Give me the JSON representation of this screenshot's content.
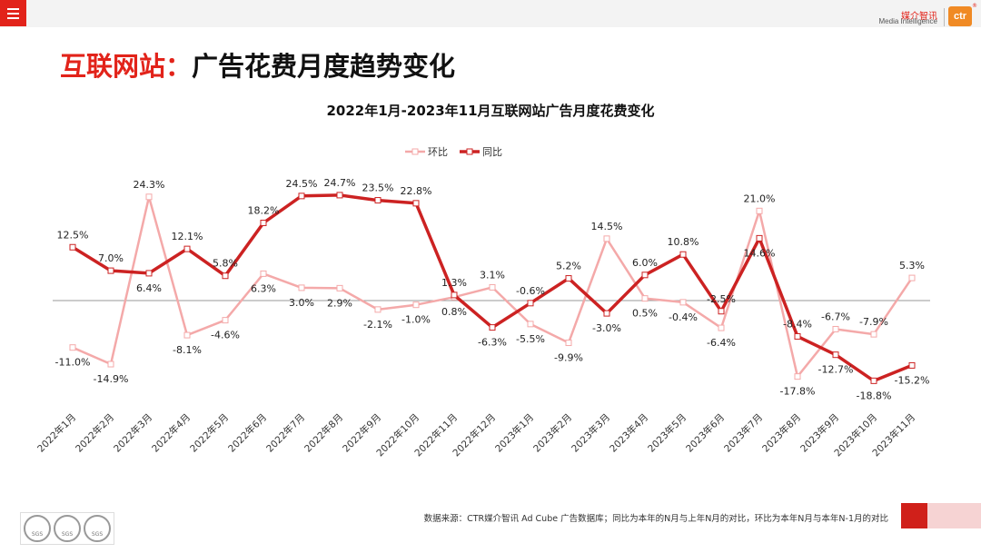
{
  "header": {
    "menu_icon": "hamburger-menu-icon",
    "logo_cn": "媒介智讯",
    "logo_en": "Media Intelligence",
    "logo_mark": "ctr",
    "logo_registered": "®"
  },
  "page_title": {
    "part1": "互联网站：",
    "part2": "广告花费月度趋势变化"
  },
  "footer": {
    "note": "数据来源：CTR媒介智讯 Ad Cube 广告数据库；同比为本年的N月与上年N月的对比，环比为本年N月与本年N-1月的对比",
    "badge_text": "SGS"
  },
  "colors": {
    "accent": "#e2231a",
    "mom_line": "#f4a9a9",
    "yoy_line": "#cc2222",
    "zero_line": "#999999"
  },
  "chart_data": {
    "type": "line",
    "title": "2022年1月-2023年11月互联网站广告月度花费变化",
    "legend_position": "top-center",
    "categories": [
      "2022年1月",
      "2022年2月",
      "2022年3月",
      "2022年4月",
      "2022年5月",
      "2022年6月",
      "2022年7月",
      "2022年8月",
      "2022年9月",
      "2022年10月",
      "2022年11月",
      "2022年12月",
      "2023年1月",
      "2023年2月",
      "2023年3月",
      "2023年4月",
      "2023年5月",
      "2023年6月",
      "2023年7月",
      "2023年8月",
      "2023年9月",
      "2023年10月",
      "2023年11月"
    ],
    "series": [
      {
        "name": "环比",
        "values": [
          -11.0,
          -14.9,
          24.3,
          -8.1,
          -4.6,
          6.3,
          3.0,
          2.9,
          -2.1,
          -1.0,
          0.8,
          3.1,
          -5.5,
          -9.9,
          14.5,
          0.5,
          -0.4,
          -6.4,
          21.0,
          -17.8,
          -6.7,
          -7.9,
          5.3
        ],
        "labels": [
          "-11.0%",
          "-14.9%",
          "24.3%",
          "-8.1%",
          "-4.6%",
          "6.3%",
          "3.0%",
          "2.9%",
          "-2.1%",
          "-1.0%",
          "0.8%",
          "3.1%",
          "-5.5%",
          "-9.9%",
          "14.5%",
          "0.5%",
          "-0.4%",
          "-6.4%",
          "21.0%",
          "-17.8%",
          "-6.7%",
          "-7.9%",
          "5.3%"
        ]
      },
      {
        "name": "同比",
        "values": [
          12.5,
          7.0,
          6.4,
          12.1,
          5.8,
          18.2,
          24.5,
          24.7,
          23.5,
          22.8,
          1.3,
          -6.3,
          -0.6,
          5.2,
          -3.0,
          6.0,
          10.8,
          -2.5,
          14.6,
          -8.4,
          -12.7,
          -18.8,
          -15.2
        ],
        "labels": [
          "12.5%",
          "7.0%",
          "6.4%",
          "12.1%",
          "5.8%",
          "18.2%",
          "24.5%",
          "24.7%",
          "23.5%",
          "22.8%",
          "1.3%",
          "-6.3%",
          "-0.6%",
          "5.2%",
          "-3.0%",
          "6.0%",
          "10.8%",
          "-2.5%",
          "14.6%",
          "-8.4%",
          "-12.7%",
          "-18.8%",
          "-15.2%"
        ]
      }
    ],
    "ylim": [
      -20,
      26
    ],
    "grid": false,
    "zero_line": true
  }
}
